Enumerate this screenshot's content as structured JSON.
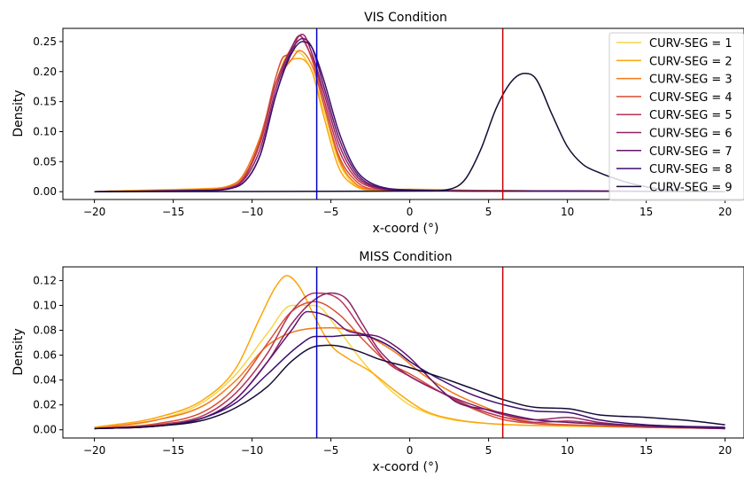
{
  "chart_data": [
    {
      "type": "line",
      "title": "VIS Condition",
      "xlabel": "x-coord (°)",
      "ylabel": "Density",
      "xlim": [
        -22,
        21.2
      ],
      "ylim": [
        -0.013,
        0.272
      ],
      "xticks": [
        -20,
        -15,
        -10,
        -5,
        0,
        5,
        10,
        15,
        20
      ],
      "xtick_labels": [
        "−20",
        "−15",
        "−10",
        "−5",
        "0",
        "5",
        "10",
        "15",
        "20"
      ],
      "yticks": [
        0.0,
        0.05,
        0.1,
        0.15,
        0.2,
        0.25
      ],
      "ytick_labels": [
        "0.00",
        "0.05",
        "0.10",
        "0.15",
        "0.20",
        "0.25"
      ],
      "legend": {
        "placement": "top-right",
        "entries": [
          "CURV-SEG = 1",
          "CURV-SEG = 2",
          "CURV-SEG = 3",
          "CURV-SEG = 4",
          "CURV-SEG = 5",
          "CURV-SEG = 6",
          "CURV-SEG = 7",
          "CURV-SEG = 8",
          "CURV-SEG = 9"
        ]
      },
      "vlines": [
        {
          "x": -5.9,
          "color": "#0000cc"
        },
        {
          "x": 5.9,
          "color": "#cc0000"
        }
      ],
      "series": [
        {
          "name": "CURV-SEG = 1",
          "color": "#f6d645",
          "x": [
            -20,
            -13,
            -11,
            -9.5,
            -8.5,
            -7.5,
            -7,
            -6.2,
            -5.5,
            -4.5,
            -3.5,
            -2.5,
            0,
            5,
            10,
            20
          ],
          "y": [
            0,
            0.003,
            0.012,
            0.08,
            0.18,
            0.235,
            0.232,
            0.2,
            0.14,
            0.05,
            0.012,
            0.004,
            0.002,
            0.002,
            0.001,
            0
          ]
        },
        {
          "name": "CURV-SEG = 2",
          "color": "#fca50a",
          "x": [
            -20,
            -18,
            -13,
            -11,
            -9.5,
            -8.5,
            -7.5,
            -7,
            -6.2,
            -5.5,
            -4.5,
            -3.5,
            -2.5,
            0,
            5,
            10,
            20
          ],
          "y": [
            0,
            0.002,
            0.005,
            0.015,
            0.08,
            0.18,
            0.22,
            0.222,
            0.2,
            0.13,
            0.04,
            0.01,
            0.003,
            0.004,
            0.002,
            0.001,
            0
          ]
        },
        {
          "name": "CURV-SEG = 3",
          "color": "#f37819",
          "x": [
            -20,
            -13,
            -11,
            -9.5,
            -8.5,
            -7.5,
            -7,
            -6.2,
            -5.5,
            -4.5,
            -3.5,
            -2.5,
            0,
            5,
            10,
            20
          ],
          "y": [
            0,
            0.004,
            0.015,
            0.09,
            0.18,
            0.22,
            0.235,
            0.21,
            0.15,
            0.055,
            0.015,
            0.004,
            0.003,
            0.002,
            0.001,
            0
          ]
        },
        {
          "name": "CURV-SEG = 4",
          "color": "#d94f33",
          "x": [
            -20,
            -13,
            -11,
            -9.5,
            -8.5,
            -8,
            -7.5,
            -7,
            -6.2,
            -5.5,
            -4.5,
            -3.5,
            -2.5,
            0,
            5,
            10,
            20
          ],
          "y": [
            0,
            0.003,
            0.012,
            0.085,
            0.19,
            0.225,
            0.23,
            0.26,
            0.22,
            0.15,
            0.06,
            0.02,
            0.005,
            0.002,
            0.001,
            0.001,
            0
          ]
        },
        {
          "name": "CURV-SEG = 5",
          "color": "#b63458",
          "x": [
            -20,
            -13,
            -11,
            -9.5,
            -8.5,
            -7.5,
            -7,
            -6.5,
            -6,
            -5.5,
            -4.5,
            -3.5,
            -2.5,
            0,
            5,
            10,
            20
          ],
          "y": [
            0,
            0.002,
            0.01,
            0.08,
            0.18,
            0.24,
            0.26,
            0.24,
            0.21,
            0.16,
            0.07,
            0.025,
            0.008,
            0.002,
            0.001,
            0.001,
            0
          ]
        },
        {
          "name": "CURV-SEG = 6",
          "color": "#8e2465",
          "x": [
            -20,
            -13,
            -11,
            -9.5,
            -8.5,
            -7.5,
            -6.8,
            -6.2,
            -5.5,
            -4.5,
            -3.5,
            -2.5,
            0,
            5,
            10,
            20
          ],
          "y": [
            0,
            0.002,
            0.01,
            0.07,
            0.17,
            0.24,
            0.262,
            0.23,
            0.17,
            0.08,
            0.03,
            0.01,
            0.002,
            0.001,
            0.001,
            0
          ]
        },
        {
          "name": "CURV-SEG = 7",
          "color": "#65156e",
          "x": [
            -20,
            -13,
            -11,
            -9.5,
            -8.5,
            -7.5,
            -6.8,
            -6.2,
            -5.5,
            -4.5,
            -3.5,
            -2.5,
            0,
            5,
            10,
            20
          ],
          "y": [
            0,
            0.002,
            0.008,
            0.06,
            0.16,
            0.235,
            0.255,
            0.24,
            0.18,
            0.09,
            0.035,
            0.012,
            0.002,
            0.001,
            0.001,
            0
          ]
        },
        {
          "name": "CURV-SEG = 8",
          "color": "#3b0f70",
          "x": [
            -20,
            -13,
            -11,
            -9.5,
            -8.5,
            -7.5,
            -6.8,
            -6.2,
            -5.5,
            -4.5,
            -3.5,
            -2.5,
            0,
            5,
            10,
            20
          ],
          "y": [
            0,
            0.002,
            0.008,
            0.06,
            0.16,
            0.23,
            0.25,
            0.24,
            0.19,
            0.1,
            0.04,
            0.015,
            0.003,
            0.001,
            0.001,
            0
          ]
        },
        {
          "name": "CURV-SEG = 9",
          "color": "#140b34",
          "x": [
            -20,
            1,
            2.5,
            3.5,
            4.5,
            5.5,
            6.5,
            7.3,
            8,
            9,
            10,
            11,
            12,
            13,
            14,
            15,
            16,
            17
          ],
          "y": [
            0,
            0.001,
            0.004,
            0.02,
            0.07,
            0.14,
            0.185,
            0.197,
            0.188,
            0.13,
            0.075,
            0.045,
            0.032,
            0.022,
            0.014,
            0.008,
            0.004,
            0.002
          ]
        }
      ]
    },
    {
      "type": "line",
      "title": "MISS Condition",
      "xlabel": "x-coord (°)",
      "ylabel": "Density",
      "xlim": [
        -22,
        21.2
      ],
      "ylim": [
        -0.0066,
        0.131
      ],
      "xticks": [
        -20,
        -15,
        -10,
        -5,
        0,
        5,
        10,
        15,
        20
      ],
      "xtick_labels": [
        "−20",
        "−15",
        "−10",
        "−5",
        "0",
        "5",
        "10",
        "15",
        "20"
      ],
      "yticks": [
        0.0,
        0.02,
        0.04,
        0.06,
        0.08,
        0.1,
        0.12
      ],
      "ytick_labels": [
        "0.00",
        "0.02",
        "0.04",
        "0.06",
        "0.08",
        "0.10",
        "0.12"
      ],
      "vlines": [
        {
          "x": -5.9,
          "color": "#0000cc"
        },
        {
          "x": 5.9,
          "color": "#cc0000"
        }
      ],
      "series": [
        {
          "name": "CURV-SEG = 1",
          "color": "#f6d645",
          "x": [
            -20,
            -16,
            -13,
            -11,
            -9,
            -7.5,
            -6,
            -4.5,
            -3,
            -1.5,
            0,
            2,
            5,
            10,
            15,
            20
          ],
          "y": [
            0.001,
            0.008,
            0.023,
            0.045,
            0.078,
            0.1,
            0.1,
            0.08,
            0.055,
            0.035,
            0.02,
            0.01,
            0.005,
            0.003,
            0.002,
            0.001
          ]
        },
        {
          "name": "CURV-SEG = 2",
          "color": "#fca50a",
          "x": [
            -20,
            -16,
            -13,
            -11,
            -9.5,
            -8.5,
            -7.8,
            -7,
            -6,
            -5,
            -4,
            -2.5,
            -1,
            1,
            3,
            5,
            10,
            15,
            20
          ],
          "y": [
            0.002,
            0.01,
            0.025,
            0.05,
            0.09,
            0.115,
            0.124,
            0.115,
            0.09,
            0.068,
            0.058,
            0.047,
            0.032,
            0.015,
            0.008,
            0.005,
            0.003,
            0.002,
            0.001
          ]
        },
        {
          "name": "CURV-SEG = 3",
          "color": "#f37819",
          "x": [
            -20,
            -16,
            -13,
            -11,
            -9,
            -7,
            -5,
            -3,
            -1,
            1,
            3,
            5,
            7,
            10,
            15,
            20
          ],
          "y": [
            0.001,
            0.008,
            0.02,
            0.04,
            0.068,
            0.08,
            0.082,
            0.077,
            0.063,
            0.043,
            0.028,
            0.017,
            0.008,
            0.004,
            0.003,
            0.002
          ]
        },
        {
          "name": "CURV-SEG = 4",
          "color": "#d94f33",
          "x": [
            -20,
            -16,
            -13,
            -11,
            -9,
            -7.5,
            -6,
            -4.5,
            -3,
            -1.5,
            0,
            2,
            4,
            6,
            8,
            10,
            15,
            20
          ],
          "y": [
            0.001,
            0.005,
            0.015,
            0.035,
            0.07,
            0.095,
            0.103,
            0.093,
            0.073,
            0.055,
            0.045,
            0.03,
            0.017,
            0.008,
            0.005,
            0.004,
            0.002,
            0.001
          ]
        },
        {
          "name": "CURV-SEG = 5",
          "color": "#b63458",
          "x": [
            -20,
            -16,
            -13,
            -11,
            -9,
            -7.5,
            -6,
            -4.5,
            -3,
            -1.5,
            0,
            2,
            4,
            6,
            8,
            10,
            12,
            15,
            20
          ],
          "y": [
            0.001,
            0.004,
            0.012,
            0.03,
            0.062,
            0.095,
            0.11,
            0.105,
            0.08,
            0.055,
            0.043,
            0.03,
            0.018,
            0.01,
            0.006,
            0.007,
            0.005,
            0.003,
            0.001
          ]
        },
        {
          "name": "CURV-SEG = 6",
          "color": "#8e2465",
          "x": [
            -20,
            -16,
            -13,
            -11,
            -9,
            -7.5,
            -6,
            -5,
            -4,
            -3,
            -2,
            -1,
            0,
            2,
            4,
            6,
            8,
            10,
            12,
            15,
            20
          ],
          "y": [
            0.001,
            0.003,
            0.01,
            0.025,
            0.055,
            0.085,
            0.105,
            0.11,
            0.105,
            0.085,
            0.065,
            0.052,
            0.043,
            0.03,
            0.02,
            0.012,
            0.008,
            0.01,
            0.006,
            0.003,
            0.001
          ]
        },
        {
          "name": "CURV-SEG = 7",
          "color": "#65156e",
          "x": [
            -20,
            -16,
            -13,
            -11,
            -9,
            -7.5,
            -6.5,
            -5,
            -4,
            -3,
            -2,
            -1,
            0,
            1,
            2,
            3,
            5,
            8,
            10,
            15,
            20
          ],
          "y": [
            0.001,
            0.003,
            0.01,
            0.025,
            0.055,
            0.08,
            0.095,
            0.09,
            0.08,
            0.077,
            0.075,
            0.068,
            0.058,
            0.045,
            0.032,
            0.022,
            0.016,
            0.008,
            0.006,
            0.003,
            0.001
          ]
        },
        {
          "name": "CURV-SEG = 8",
          "color": "#3b0f70",
          "x": [
            -20,
            -16,
            -13,
            -11,
            -9,
            -7,
            -6,
            -5,
            -4,
            -3,
            -2,
            -1,
            0,
            2,
            4,
            6,
            8,
            10,
            12,
            15,
            20
          ],
          "y": [
            0.001,
            0.003,
            0.01,
            0.022,
            0.045,
            0.068,
            0.075,
            0.075,
            0.076,
            0.076,
            0.072,
            0.065,
            0.055,
            0.04,
            0.028,
            0.02,
            0.015,
            0.014,
            0.008,
            0.004,
            0.002
          ]
        },
        {
          "name": "CURV-SEG = 9",
          "color": "#140b34",
          "x": [
            -20,
            -16,
            -13,
            -11,
            -9,
            -7.5,
            -6,
            -5,
            -4,
            -3,
            -2,
            0,
            2,
            4,
            6,
            8,
            10,
            12,
            15,
            18,
            20
          ],
          "y": [
            0.001,
            0.003,
            0.008,
            0.018,
            0.035,
            0.055,
            0.067,
            0.068,
            0.066,
            0.062,
            0.057,
            0.05,
            0.042,
            0.033,
            0.024,
            0.018,
            0.017,
            0.012,
            0.01,
            0.007,
            0.004
          ]
        }
      ]
    }
  ]
}
